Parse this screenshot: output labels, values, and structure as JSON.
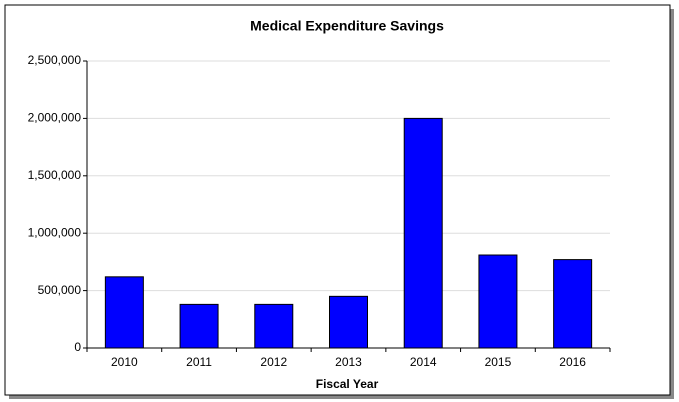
{
  "chart_data": {
    "type": "bar",
    "title": "Medical Expenditure Savings",
    "x_label": "Fiscal Year",
    "categories": [
      "2010",
      "2011",
      "2012",
      "2013",
      "2014",
      "2015",
      "2016"
    ],
    "values": [
      620000,
      380000,
      380000,
      450000,
      2000000,
      810000,
      770000
    ],
    "color": "#0000ff",
    "ylim": [
      0,
      2500000
    ],
    "yticks": [
      0,
      {
        "value": 500000,
        "label": "500,000"
      },
      {
        "value": 1000000,
        "label": "1,000,000"
      },
      {
        "value": 1500000,
        "label": "1,500,000"
      },
      {
        "value": 2000000,
        "label": "2,000,000"
      },
      {
        "value": 2500000,
        "label": "2,500,000"
      }
    ],
    "grid": true
  }
}
